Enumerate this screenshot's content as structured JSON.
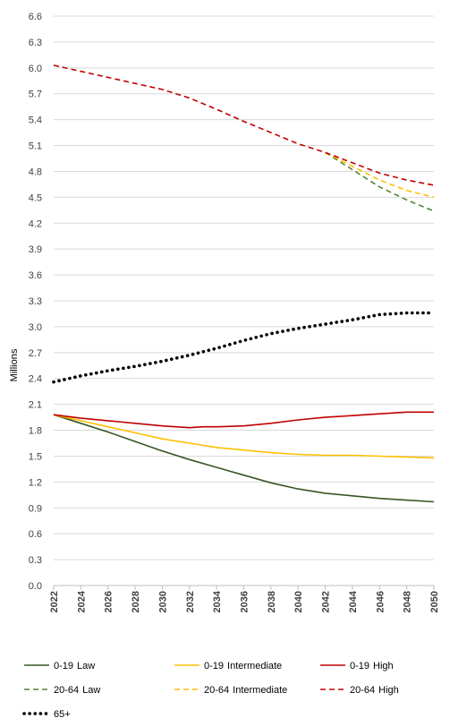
{
  "chart_data": {
    "type": "line",
    "title": "",
    "xlabel": "",
    "ylabel": "Millions",
    "ylim": [
      0,
      6.6
    ],
    "yticks": [
      "0.0",
      "0.3",
      "0.6",
      "0.9",
      "1.2",
      "1.5",
      "1.8",
      "2.1",
      "2.4",
      "2.7",
      "3.0",
      "3.3",
      "3.6",
      "3.9",
      "4.2",
      "4.5",
      "4.8",
      "5.1",
      "5.4",
      "5.7",
      "6.0",
      "6.3",
      "6.6"
    ],
    "xticks": [
      "2022",
      "2024",
      "2026",
      "2028",
      "2030",
      "2032",
      "2034",
      "2036",
      "2038",
      "2040",
      "2042",
      "2044",
      "2046",
      "2048",
      "2050"
    ],
    "grid": true,
    "legend_position": "bottom",
    "series": [
      {
        "name": "0-19 Law",
        "name_parts": [
          "0-19",
          "Law"
        ],
        "color": "#375623",
        "dash": "solid",
        "x": [
          2022,
          2024,
          2026,
          2028,
          2030,
          2032,
          2034,
          2036,
          2038,
          2040,
          2042,
          2044,
          2046,
          2048,
          2050
        ],
        "y": [
          1.98,
          1.88,
          1.78,
          1.67,
          1.56,
          1.46,
          1.37,
          1.28,
          1.19,
          1.12,
          1.07,
          1.04,
          1.01,
          0.99,
          0.97
        ]
      },
      {
        "name": "0-19 Intermediate",
        "name_parts": [
          "0-19",
          "Intermediate"
        ],
        "color": "#FFC000",
        "dash": "solid",
        "x": [
          2022,
          2024,
          2026,
          2028,
          2030,
          2032,
          2034,
          2036,
          2038,
          2040,
          2042,
          2044,
          2046,
          2048,
          2050
        ],
        "y": [
          1.98,
          1.91,
          1.84,
          1.77,
          1.7,
          1.65,
          1.6,
          1.57,
          1.54,
          1.52,
          1.51,
          1.51,
          1.5,
          1.49,
          1.48
        ]
      },
      {
        "name": "0-19 High",
        "name_parts": [
          "0-19",
          "High"
        ],
        "color": "#C00000",
        "dash": "solid",
        "x": [
          2022,
          2024,
          2026,
          2028,
          2030,
          2032,
          2033,
          2034,
          2036,
          2038,
          2040,
          2042,
          2044,
          2046,
          2048,
          2050
        ],
        "y": [
          1.98,
          1.94,
          1.91,
          1.88,
          1.85,
          1.83,
          1.84,
          1.84,
          1.85,
          1.88,
          1.92,
          1.95,
          1.97,
          1.99,
          2.01,
          2.01
        ]
      },
      {
        "name": "20-64 Law",
        "name_parts": [
          "20-64",
          "Law"
        ],
        "color": "#548235",
        "dash": "dashed",
        "x": [
          2042,
          2044,
          2046,
          2048,
          2050
        ],
        "y": [
          5.02,
          4.82,
          4.62,
          4.47,
          4.34
        ]
      },
      {
        "name": "20-64 Intermediate",
        "name_parts": [
          "20-64",
          "Intermediate"
        ],
        "color": "#FFC000",
        "dash": "dashed",
        "x": [
          2042,
          2044,
          2046,
          2048,
          2050
        ],
        "y": [
          5.02,
          4.86,
          4.7,
          4.58,
          4.5
        ]
      },
      {
        "name": "20-64 High",
        "name_parts": [
          "20-64",
          "High"
        ],
        "color": "#C00000",
        "dash": "dashed",
        "x": [
          2022,
          2024,
          2026,
          2028,
          2030,
          2032,
          2034,
          2036,
          2038,
          2040,
          2042,
          2044,
          2046,
          2048,
          2050
        ],
        "y": [
          6.03,
          5.96,
          5.89,
          5.82,
          5.75,
          5.65,
          5.52,
          5.38,
          5.25,
          5.12,
          5.02,
          4.9,
          4.78,
          4.7,
          4.64
        ]
      },
      {
        "name": "65+",
        "name_parts": [
          "65+"
        ],
        "color": "#000000",
        "dash": "dotted",
        "x": [
          2022,
          2024,
          2026,
          2028,
          2030,
          2032,
          2034,
          2036,
          2038,
          2040,
          2042,
          2044,
          2046,
          2048,
          2050
        ],
        "y": [
          2.36,
          2.43,
          2.49,
          2.54,
          2.6,
          2.67,
          2.75,
          2.84,
          2.92,
          2.98,
          3.03,
          3.08,
          3.14,
          3.16,
          3.16
        ]
      }
    ]
  }
}
